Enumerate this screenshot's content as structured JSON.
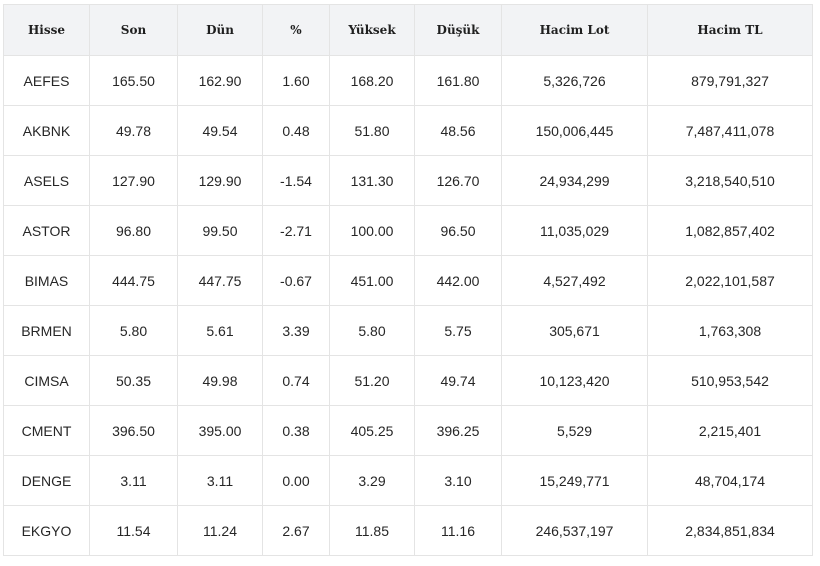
{
  "table": {
    "headers": [
      "Hisse",
      "Son",
      "Dün",
      "%",
      "Yüksek",
      "Düşük",
      "Hacim Lot",
      "Hacim TL"
    ],
    "rows": [
      [
        "AEFES",
        "165.50",
        "162.90",
        "1.60",
        "168.20",
        "161.80",
        "5,326,726",
        "879,791,327"
      ],
      [
        "AKBNK",
        "49.78",
        "49.54",
        "0.48",
        "51.80",
        "48.56",
        "150,006,445",
        "7,487,411,078"
      ],
      [
        "ASELS",
        "127.90",
        "129.90",
        "-1.54",
        "131.30",
        "126.70",
        "24,934,299",
        "3,218,540,510"
      ],
      [
        "ASTOR",
        "96.80",
        "99.50",
        "-2.71",
        "100.00",
        "96.50",
        "11,035,029",
        "1,082,857,402"
      ],
      [
        "BIMAS",
        "444.75",
        "447.75",
        "-0.67",
        "451.00",
        "442.00",
        "4,527,492",
        "2,022,101,587"
      ],
      [
        "BRMEN",
        "5.80",
        "5.61",
        "3.39",
        "5.80",
        "5.75",
        "305,671",
        "1,763,308"
      ],
      [
        "CIMSA",
        "50.35",
        "49.98",
        "0.74",
        "51.20",
        "49.74",
        "10,123,420",
        "510,953,542"
      ],
      [
        "CMENT",
        "396.50",
        "395.00",
        "0.38",
        "405.25",
        "396.25",
        "5,529",
        "2,215,401"
      ],
      [
        "DENGE",
        "3.11",
        "3.11",
        "0.00",
        "3.29",
        "3.10",
        "15,249,771",
        "48,704,174"
      ],
      [
        "EKGYO",
        "11.54",
        "11.24",
        "2.67",
        "11.85",
        "11.16",
        "246,537,197",
        "2,834,851,834"
      ]
    ]
  }
}
